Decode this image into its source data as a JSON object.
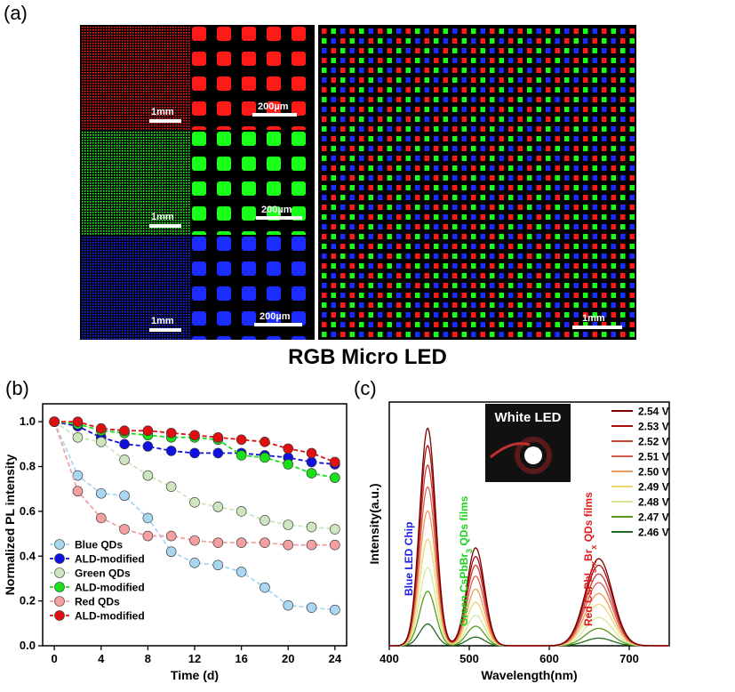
{
  "panel_labels": {
    "a": "(a)",
    "b": "(b)",
    "c": "(c)"
  },
  "figure_title": "RGB Micro LED",
  "micrographs": {
    "scale_labels": {
      "mm": "1mm",
      "um": "200µm"
    },
    "colors": {
      "red": "#ff1a1a",
      "green": "#1aff1a",
      "blue": "#1a2cff",
      "background": "#000000"
    }
  },
  "chart_data": [
    {
      "type": "line",
      "panel": "b",
      "xlabel": "Time (d)",
      "ylabel": "Normalized PL intensity",
      "xlim": [
        -1,
        25
      ],
      "ylim": [
        0,
        1.08
      ],
      "xticks": [
        0,
        4,
        8,
        12,
        16,
        20,
        24
      ],
      "yticks": [
        0.0,
        0.2,
        0.4,
        0.6,
        0.8,
        1.0
      ],
      "x": [
        0,
        2,
        4,
        6,
        8,
        10,
        12,
        14,
        16,
        18,
        20,
        22,
        24
      ],
      "legend_position": "bottom-left",
      "series": [
        {
          "name": "Blue QDs",
          "color": "#a9d7f2",
          "values": [
            1.0,
            0.76,
            0.68,
            0.67,
            0.57,
            0.42,
            0.37,
            0.36,
            0.33,
            0.26,
            0.18,
            0.17,
            0.16
          ]
        },
        {
          "name": "ALD-modified",
          "color": "#1010e0",
          "values": [
            1.0,
            0.98,
            0.93,
            0.9,
            0.89,
            0.87,
            0.86,
            0.86,
            0.86,
            0.85,
            0.84,
            0.82,
            0.81
          ]
        },
        {
          "name": "Green QDs",
          "color": "#cde6bf",
          "values": [
            1.0,
            0.93,
            0.91,
            0.83,
            0.76,
            0.71,
            0.64,
            0.62,
            0.6,
            0.56,
            0.54,
            0.53,
            0.52
          ]
        },
        {
          "name": "ALD-modified",
          "color": "#19e019",
          "values": [
            1.0,
            0.99,
            0.96,
            0.95,
            0.94,
            0.93,
            0.93,
            0.92,
            0.85,
            0.84,
            0.81,
            0.77,
            0.75
          ]
        },
        {
          "name": "Red QDs",
          "color": "#f4a0a0",
          "values": [
            1.0,
            0.69,
            0.57,
            0.52,
            0.49,
            0.49,
            0.47,
            0.46,
            0.46,
            0.46,
            0.45,
            0.45,
            0.45
          ]
        },
        {
          "name": "ALD-modified",
          "color": "#e01010",
          "values": [
            1.0,
            1.0,
            0.97,
            0.96,
            0.96,
            0.95,
            0.94,
            0.93,
            0.92,
            0.91,
            0.88,
            0.86,
            0.82
          ]
        }
      ]
    },
    {
      "type": "line",
      "panel": "c",
      "xlabel": "Wavelength(nm)",
      "ylabel": "Intensity(a.u.)",
      "xlim": [
        400,
        750
      ],
      "xticks": [
        400,
        500,
        600,
        700
      ],
      "yticks": [],
      "legend_position": "top-right",
      "inset_label": "White LED",
      "annotations": [
        {
          "text": "Blue LED Chip",
          "color": "#1e1ee6"
        },
        {
          "text": "Green CsPbBr",
          "sub": "3",
          "tail": " QDs films",
          "color": "#19d219"
        },
        {
          "text": "Red CsPbI",
          "sub": "3-x",
          "mid": "Br",
          "sub2": "x",
          "tail": " QDs films",
          "color": "#e01a1a"
        }
      ],
      "peaks": [
        {
          "label": "blue",
          "center": 448,
          "width": 10
        },
        {
          "label": "green",
          "center": 508,
          "width": 11
        },
        {
          "label": "red",
          "center": 662,
          "width": 17
        }
      ],
      "series": [
        {
          "name": "2.54 V",
          "color": "#7a0000",
          "amplitudes": [
            1.0,
            0.45,
            0.4
          ]
        },
        {
          "name": "2.53 V",
          "color": "#a81010",
          "amplitudes": [
            0.92,
            0.41,
            0.37
          ]
        },
        {
          "name": "2.52 V",
          "color": "#c0403a",
          "amplitudes": [
            0.83,
            0.37,
            0.33
          ]
        },
        {
          "name": "2.51 V",
          "color": "#d86050",
          "amplitudes": [
            0.73,
            0.32,
            0.29
          ]
        },
        {
          "name": "2.50 V",
          "color": "#ec9a55",
          "amplitudes": [
            0.62,
            0.26,
            0.24
          ]
        },
        {
          "name": "2.49 V",
          "color": "#f0d470",
          "amplitudes": [
            0.49,
            0.2,
            0.19
          ]
        },
        {
          "name": "2.48 V",
          "color": "#d6e89a",
          "amplitudes": [
            0.36,
            0.14,
            0.13
          ]
        },
        {
          "name": "2.47 V",
          "color": "#5a9a20",
          "amplitudes": [
            0.25,
            0.09,
            0.08
          ]
        },
        {
          "name": "2.46 V",
          "color": "#1f6a1f",
          "amplitudes": [
            0.1,
            0.04,
            0.035
          ]
        }
      ]
    }
  ]
}
